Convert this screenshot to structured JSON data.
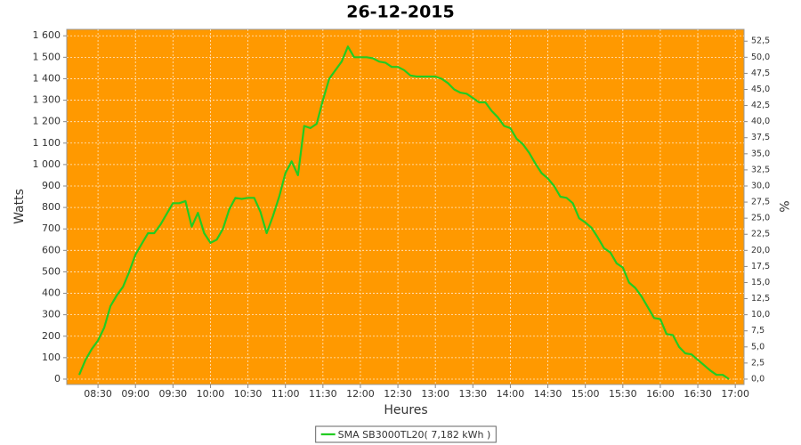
{
  "chart_data": {
    "type": "line",
    "title": "26-12-2015",
    "x_label": "Heures",
    "y_label": "Watts",
    "y2_label": "%",
    "background": "#ff9900",
    "grid": true,
    "x": [
      "08:15",
      "08:20",
      "08:25",
      "08:30",
      "08:35",
      "08:40",
      "08:45",
      "08:50",
      "08:55",
      "09:00",
      "09:05",
      "09:10",
      "09:15",
      "09:20",
      "09:25",
      "09:30",
      "09:35",
      "09:40",
      "09:45",
      "09:50",
      "09:55",
      "10:00",
      "10:05",
      "10:10",
      "10:15",
      "10:20",
      "10:25",
      "10:30",
      "10:35",
      "10:40",
      "10:45",
      "10:50",
      "10:55",
      "11:00",
      "11:05",
      "11:10",
      "11:15",
      "11:20",
      "11:25",
      "11:30",
      "11:35",
      "11:40",
      "11:45",
      "11:50",
      "11:55",
      "12:00",
      "12:05",
      "12:10",
      "12:15",
      "12:20",
      "12:25",
      "12:30",
      "12:35",
      "12:40",
      "12:45",
      "12:50",
      "12:55",
      "13:00",
      "13:05",
      "13:10",
      "13:15",
      "13:20",
      "13:25",
      "13:30",
      "13:35",
      "13:40",
      "13:45",
      "13:50",
      "13:55",
      "14:00",
      "14:05",
      "14:10",
      "14:15",
      "14:20",
      "14:25",
      "14:30",
      "14:35",
      "14:40",
      "14:45",
      "14:50",
      "14:55",
      "15:00",
      "15:05",
      "15:10",
      "15:15",
      "15:20",
      "15:25",
      "15:30",
      "15:35",
      "15:40",
      "15:45",
      "15:50",
      "15:55",
      "16:00",
      "16:05",
      "16:10",
      "16:15",
      "16:20",
      "16:25",
      "16:30",
      "16:35",
      "16:40",
      "16:45",
      "16:50",
      "16:55"
    ],
    "series": [
      {
        "name": "SMA SB3000TL20( 7,182 kWh )",
        "color": "#22cc22",
        "values": [
          20,
          90,
          140,
          180,
          240,
          340,
          390,
          430,
          500,
          580,
          630,
          680,
          680,
          720,
          770,
          820,
          820,
          830,
          710,
          775,
          680,
          635,
          650,
          700,
          790,
          845,
          840,
          845,
          845,
          780,
          680,
          760,
          850,
          960,
          1015,
          950,
          1180,
          1170,
          1190,
          1300,
          1400,
          1440,
          1480,
          1550,
          1500,
          1500,
          1500,
          1495,
          1480,
          1475,
          1455,
          1455,
          1440,
          1415,
          1410,
          1410,
          1410,
          1410,
          1400,
          1380,
          1350,
          1335,
          1330,
          1310,
          1290,
          1290,
          1250,
          1220,
          1180,
          1170,
          1120,
          1095,
          1055,
          1005,
          960,
          935,
          900,
          850,
          845,
          820,
          750,
          730,
          705,
          660,
          610,
          590,
          540,
          520,
          450,
          425,
          385,
          335,
          285,
          280,
          210,
          205,
          150,
          120,
          115,
          90,
          65,
          40,
          20,
          20,
          0
        ]
      }
    ],
    "xlim": [
      "08:05",
      "17:07"
    ],
    "xticks": [
      "08:30",
      "09:00",
      "09:30",
      "10:00",
      "10:30",
      "11:00",
      "11:30",
      "12:00",
      "12:30",
      "13:00",
      "13:30",
      "14:00",
      "14:30",
      "15:00",
      "15:30",
      "16:00",
      "16:30",
      "17:00"
    ],
    "ylim": [
      -25,
      1630
    ],
    "yticks": [
      0,
      100,
      200,
      300,
      400,
      500,
      600,
      700,
      800,
      900,
      {
        "value": 1000,
        "label": "1 000"
      },
      {
        "value": 1100,
        "label": "1 100"
      },
      {
        "value": 1200,
        "label": "1 200"
      },
      {
        "value": 1300,
        "label": "1 300"
      },
      {
        "value": 1400,
        "label": "1 400"
      },
      {
        "value": 1500,
        "label": "1 500"
      },
      {
        "value": 1600,
        "label": "1 600"
      }
    ],
    "y2lim": [
      -0.833,
      54.33
    ],
    "y2ticks": [
      {
        "value": 0,
        "label": "0,0"
      },
      {
        "value": 2.5,
        "label": "2,5"
      },
      {
        "value": 5,
        "label": "5,0"
      },
      {
        "value": 7.5,
        "label": "7,5"
      },
      {
        "value": 10,
        "label": "10,0"
      },
      {
        "value": 12.5,
        "label": "12,5"
      },
      {
        "value": 15,
        "label": "15,0"
      },
      {
        "value": 17.5,
        "label": "17,5"
      },
      {
        "value": 20,
        "label": "20,0"
      },
      {
        "value": 22.5,
        "label": "22,5"
      },
      {
        "value": 25,
        "label": "25,0"
      },
      {
        "value": 27.5,
        "label": "27,5"
      },
      {
        "value": 30,
        "label": "30,0"
      },
      {
        "value": 32.5,
        "label": "32,5"
      },
      {
        "value": 35,
        "label": "35,0"
      },
      {
        "value": 37.5,
        "label": "37,5"
      },
      {
        "value": 40,
        "label": "40,0"
      },
      {
        "value": 42.5,
        "label": "42,5"
      },
      {
        "value": 45,
        "label": "45,0"
      },
      {
        "value": 47.5,
        "label": "47,5"
      },
      {
        "value": 50,
        "label": "50,0"
      },
      {
        "value": 52.5,
        "label": "52,5"
      }
    ]
  }
}
